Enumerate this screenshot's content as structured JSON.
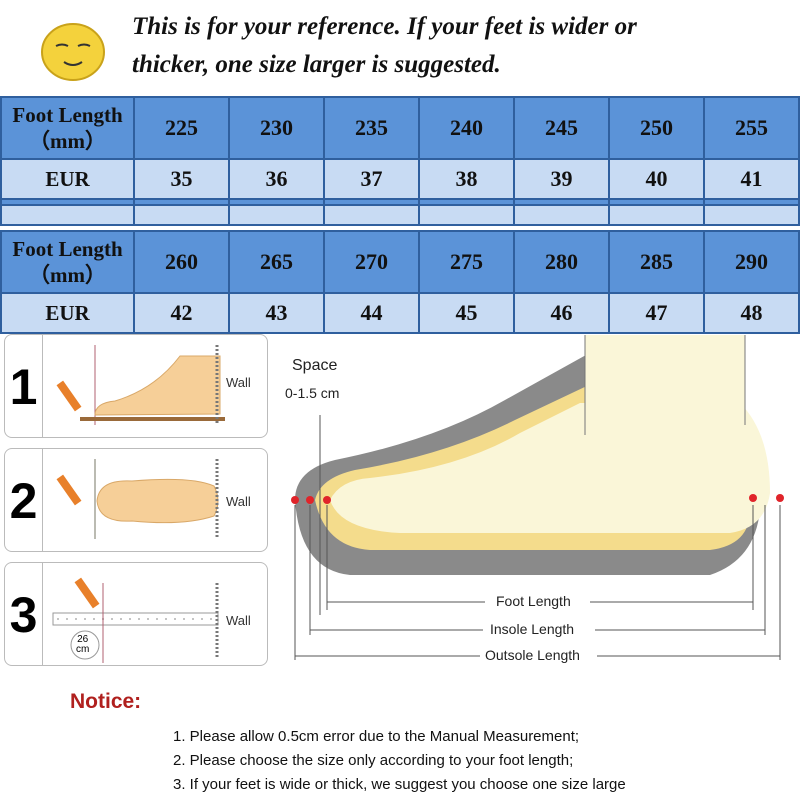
{
  "header": {
    "icon": "smiley-face-icon",
    "line1": "This is for your reference. If your feet is wider or",
    "line2": "thicker, one size larger is suggested."
  },
  "size_table": {
    "row_labels": {
      "length_line1": "Foot Length",
      "length_line2": "（mm）",
      "eur": "EUR"
    },
    "part1": {
      "lengths": [
        "225",
        "230",
        "235",
        "240",
        "245",
        "250",
        "255"
      ],
      "eur": [
        "35",
        "36",
        "37",
        "38",
        "39",
        "40",
        "41"
      ]
    },
    "part2": {
      "lengths": [
        "260",
        "265",
        "270",
        "275",
        "280",
        "285",
        "290"
      ],
      "eur": [
        "42",
        "43",
        "44",
        "45",
        "46",
        "47",
        "48"
      ]
    },
    "colors": {
      "header_row": "#5b93d8",
      "eur_row": "#c8dbf3",
      "border": "#2f5f9e"
    }
  },
  "steps": [
    {
      "number": "1",
      "wall": "Wall"
    },
    {
      "number": "2",
      "wall": "Wall"
    },
    {
      "number": "3",
      "wall": "Wall",
      "measure": "26",
      "unit": "cm"
    }
  ],
  "diagram": {
    "space_label": "Space",
    "space_value": "0-1.5 cm",
    "foot_length": "Foot Length",
    "insole_length": "Insole Length",
    "outsole_length": "Outsole Length"
  },
  "notice": {
    "title": "Notice:",
    "items": [
      "1. Please allow 0.5cm error due to the Manual Measurement;",
      "2. Please choose the size only according to your foot length;",
      "3. If your feet is wide or thick, we suggest you choose one size large"
    ]
  }
}
